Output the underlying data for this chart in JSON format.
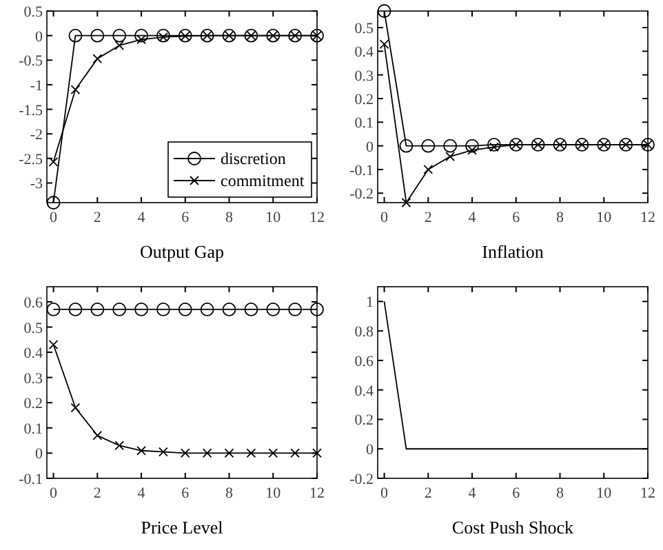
{
  "chart_data": [
    {
      "type": "line",
      "xlabel": "Output Gap",
      "x": [
        0,
        1,
        2,
        3,
        4,
        5,
        6,
        7,
        8,
        9,
        10,
        11,
        12
      ],
      "xlim": [
        -0.3,
        12
      ],
      "xticks": [
        0,
        2,
        4,
        6,
        8,
        10,
        12
      ],
      "ylim": [
        -3.4,
        0.5
      ],
      "yticks": [
        0.5,
        0,
        -0.5,
        -1,
        -1.5,
        -2,
        -2.5,
        -3
      ],
      "grid": false,
      "legend": "bottom right",
      "series": [
        {
          "name": "discretion",
          "color": "#000000",
          "marker": "circle",
          "values": [
            -3.4,
            0,
            0,
            0,
            0,
            0,
            0,
            0,
            0,
            0,
            0,
            0,
            0
          ]
        },
        {
          "name": "commitment",
          "color": "#000000",
          "marker": "cross",
          "values": [
            -2.57,
            -1.1,
            -0.47,
            -0.2,
            -0.08,
            -0.03,
            -0.01,
            0,
            0,
            0,
            0,
            0,
            0
          ]
        }
      ]
    },
    {
      "type": "line",
      "xlabel": "Inflation",
      "x": [
        0,
        1,
        2,
        3,
        4,
        5,
        6,
        7,
        8,
        9,
        10,
        11,
        12
      ],
      "xlim": [
        -0.3,
        12
      ],
      "xticks": [
        0,
        2,
        4,
        6,
        8,
        10,
        12
      ],
      "ylim": [
        -0.24,
        0.57
      ],
      "yticks": [
        -0.2,
        -0.1,
        0,
        0.1,
        0.2,
        0.3,
        0.4,
        0.5
      ],
      "grid": false,
      "legend": false,
      "series": [
        {
          "color": "#000000",
          "marker": "circle",
          "values": [
            0.57,
            0,
            0,
            0,
            0,
            0.005,
            0.005,
            0.005,
            0.005,
            0.005,
            0.005,
            0.005,
            0.005
          ]
        },
        {
          "color": "#000000",
          "marker": "cross",
          "values": [
            0.43,
            -0.24,
            -0.1,
            -0.045,
            -0.018,
            -0.005,
            0.005,
            0.005,
            0.005,
            0.005,
            0.005,
            0.005,
            0.005
          ]
        }
      ]
    },
    {
      "type": "line",
      "xlabel": "Price Level",
      "x": [
        0,
        1,
        2,
        3,
        4,
        5,
        6,
        7,
        8,
        9,
        10,
        11,
        12
      ],
      "xlim": [
        -0.3,
        12
      ],
      "xticks": [
        0,
        2,
        4,
        6,
        8,
        10,
        12
      ],
      "ylim": [
        -0.1,
        0.66
      ],
      "yticks": [
        -0.1,
        0,
        0.1,
        0.2,
        0.3,
        0.4,
        0.5,
        0.6
      ],
      "grid": false,
      "legend": false,
      "series": [
        {
          "color": "#000000",
          "marker": "circle",
          "values": [
            0.57,
            0.57,
            0.57,
            0.57,
            0.57,
            0.57,
            0.57,
            0.57,
            0.57,
            0.57,
            0.57,
            0.57,
            0.57
          ]
        },
        {
          "color": "#000000",
          "marker": "cross",
          "values": [
            0.43,
            0.18,
            0.07,
            0.03,
            0.01,
            0.005,
            0,
            0,
            0,
            0,
            0,
            0,
            0
          ]
        }
      ]
    },
    {
      "type": "line",
      "xlabel": "Cost Push Shock",
      "x": [
        0,
        1,
        2,
        3,
        4,
        5,
        6,
        7,
        8,
        9,
        10,
        11,
        12
      ],
      "xlim": [
        -0.3,
        12
      ],
      "xticks": [
        0,
        2,
        4,
        6,
        8,
        10,
        12
      ],
      "ylim": [
        -0.2,
        1.1
      ],
      "yticks": [
        -0.2,
        0,
        0.2,
        0.4,
        0.6,
        0.8,
        1
      ],
      "grid": false,
      "legend": false,
      "series": [
        {
          "color": "#000000",
          "marker": "none",
          "values": [
            1,
            0,
            0,
            0,
            0,
            0,
            0,
            0,
            0,
            0,
            0,
            0,
            0
          ]
        }
      ]
    }
  ]
}
